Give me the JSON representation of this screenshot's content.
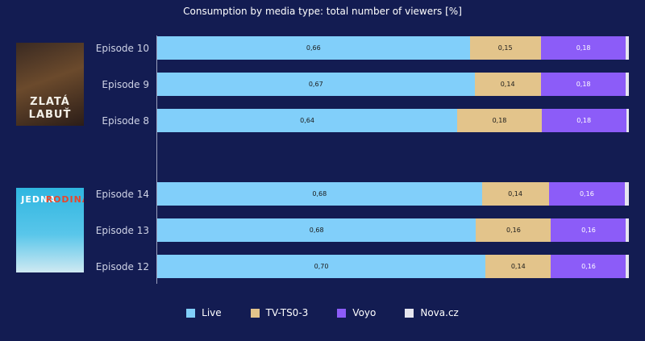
{
  "chart_data": {
    "type": "bar",
    "orientation": "horizontal",
    "stacked": true,
    "title": "Consumption by media type: total number of viewers [%]",
    "xlim": [
      0,
      1
    ],
    "groups": [
      {
        "name": "Zlatá labuť",
        "poster_text": [
          "ZLATÁ",
          "LABUŤ"
        ],
        "categories": [
          "Episode 10",
          "Episode 9",
          "Episode 8"
        ]
      },
      {
        "name": "Jedna rodina",
        "poster_text": [
          "JEDNA",
          "RODINA"
        ],
        "categories": [
          "Episode 14",
          "Episode 13",
          "Episode 12"
        ]
      }
    ],
    "categories": [
      "Episode 10",
      "Episode 9",
      "Episode 8",
      "Episode 14",
      "Episode 13",
      "Episode 12"
    ],
    "series": [
      {
        "name": "Live",
        "color": "#81cffa",
        "values": [
          0.66,
          0.67,
          0.64,
          0.68,
          0.68,
          0.7
        ],
        "labels": [
          "0,66",
          "0,67",
          "0,64",
          "0,68",
          "0,68",
          "0,70"
        ]
      },
      {
        "name": "TV-TS0-3",
        "color": "#e3c48b",
        "values": [
          0.15,
          0.14,
          0.18,
          0.14,
          0.16,
          0.14
        ],
        "labels": [
          "0,15",
          "0,14",
          "0,18",
          "0,14",
          "0,16",
          "0,14"
        ]
      },
      {
        "name": "Voyo",
        "color": "#8c5cf8",
        "values": [
          0.18,
          0.18,
          0.18,
          0.16,
          0.16,
          0.16
        ],
        "labels": [
          "0,18",
          "0,18",
          "0,18",
          "0,16",
          "0,16",
          "0,16"
        ]
      },
      {
        "name": "Nova.cz",
        "color": "#e6e6ef",
        "values": [
          0.006,
          0.006,
          0.006,
          0.008,
          0.006,
          0.006
        ],
        "labels": [
          "",
          "",
          "",
          "",
          "",
          ""
        ]
      }
    ],
    "legend": "bottom-center"
  }
}
